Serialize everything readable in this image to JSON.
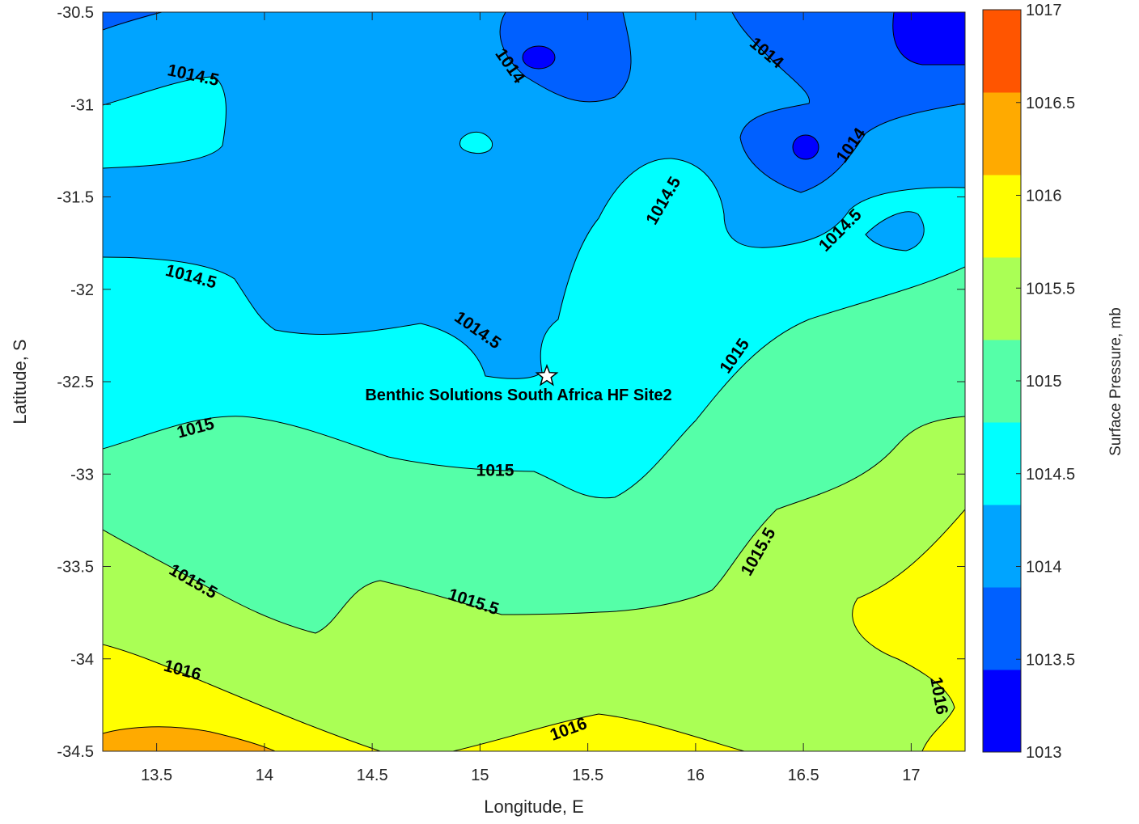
{
  "chart_data": {
    "type": "contour",
    "title": "",
    "xlabel": "Longitude, E",
    "ylabel": "Latitude, S",
    "xlim": [
      13.25,
      17.25
    ],
    "ylim": [
      -34.5,
      -30.5
    ],
    "xticks": [
      "13.5",
      "14",
      "14.5",
      "15",
      "15.5",
      "16",
      "16.5",
      "17"
    ],
    "yticks": [
      "-30.5",
      "-31",
      "-31.5",
      "-32",
      "-32.5",
      "-33",
      "-33.5",
      "-34",
      "-34.5"
    ],
    "colorbar": {
      "label": "Surface Pressure, mb",
      "range": [
        1013,
        1017
      ],
      "ticks": [
        "1013",
        "1013.5",
        "1014",
        "1014.5",
        "1015",
        "1015.5",
        "1016",
        "1016.5",
        "1017"
      ],
      "colors": [
        "#0000ff",
        "#0060ff",
        "#00a4ff",
        "#00ffff",
        "#55ffa8",
        "#aaff55",
        "#ffff00",
        "#ffaa00",
        "#ff5500"
      ]
    },
    "contour_levels": [
      1014,
      1014.5,
      1015,
      1015.5,
      1016
    ],
    "contour_labels": [
      {
        "text": "1014.5",
        "lon": 13.67,
        "lat": -30.84
      },
      {
        "text": "1014",
        "lon": 15.14,
        "lat": -30.79
      },
      {
        "text": "1014",
        "lon": 16.33,
        "lat": -30.72
      },
      {
        "text": "1014",
        "lon": 16.72,
        "lat": -31.22
      },
      {
        "text": "1014.5",
        "lon": 15.85,
        "lat": -31.52
      },
      {
        "text": "1014.5",
        "lon": 16.67,
        "lat": -31.68
      },
      {
        "text": "1014.5",
        "lon": 13.66,
        "lat": -31.93
      },
      {
        "text": "1014.5",
        "lon": 14.99,
        "lat": -32.22
      },
      {
        "text": "1015",
        "lon": 16.18,
        "lat": -32.36
      },
      {
        "text": "1015",
        "lon": 13.68,
        "lat": -32.75
      },
      {
        "text": "1015",
        "lon": 15.07,
        "lat": -32.98
      },
      {
        "text": "1015.5",
        "lon": 16.29,
        "lat": -33.42
      },
      {
        "text": "1015.5",
        "lon": 13.67,
        "lat": -33.58
      },
      {
        "text": "1015.5",
        "lon": 14.97,
        "lat": -33.69
      },
      {
        "text": "1016",
        "lon": 13.62,
        "lat": -34.06
      },
      {
        "text": "1016",
        "lon": 17.13,
        "lat": -34.2
      },
      {
        "text": "1016",
        "lon": 15.41,
        "lat": -34.38
      }
    ],
    "markers": [
      {
        "label": "Benthic Solutions South Africa HF Site2",
        "lon": 15.31,
        "lat": -32.47,
        "symbol": "star"
      }
    ],
    "grid": false,
    "legend": "colorbar-right"
  }
}
